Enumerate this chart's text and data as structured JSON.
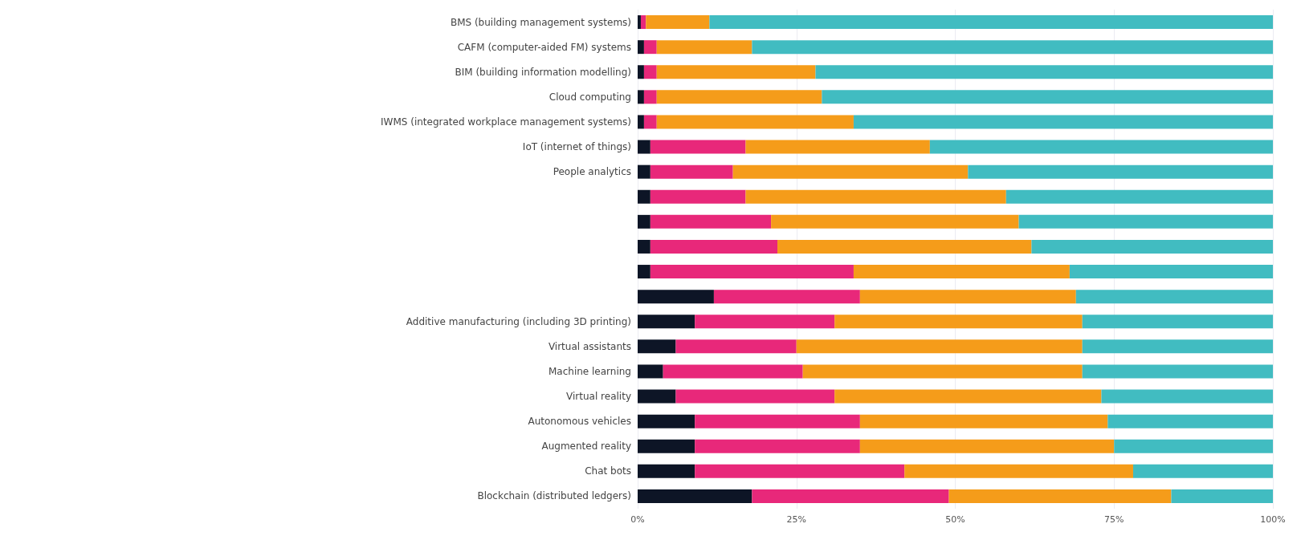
{
  "chart_data": {
    "type": "bar",
    "orientation": "horizontal",
    "stacked": true,
    "categories": [
      "BMS (building management systems)",
      "CAFM (computer-aided FM) systems",
      "BIM (building information modelling)",
      "Cloud computing",
      "IWMS (integrated workplace management systems)",
      "IoT (internet of things)",
      "People analytics",
      null,
      null,
      null,
      null,
      null,
      "Additive manufacturing (including 3D printing)",
      "Virtual assistants",
      "Machine learning",
      "Virtual reality",
      "Autonomous vehicles",
      "Augmented reality",
      "Chat bots",
      "Blockchain (distributed ledgers)"
    ],
    "series": [
      {
        "color": "#0d1526",
        "values": [
          0.5,
          1,
          1,
          1,
          1,
          2,
          2,
          2,
          2,
          2,
          2,
          12,
          9,
          6,
          4,
          6,
          9,
          9,
          9,
          18
        ]
      },
      {
        "color": "#e8287a",
        "values": [
          0.8,
          2,
          2,
          2,
          2,
          15,
          13,
          15,
          19,
          20,
          32,
          23,
          22,
          19,
          22,
          25,
          26,
          26,
          33,
          31
        ]
      },
      {
        "color": "#f59c1a",
        "values": [
          10,
          15,
          25,
          26,
          31,
          29,
          37,
          41,
          39,
          40,
          34,
          34,
          39,
          45,
          44,
          42,
          39,
          40,
          36,
          35
        ]
      },
      {
        "color": "#41bcc1",
        "values": [
          88.7,
          82,
          72,
          71,
          66,
          54,
          48,
          42,
          40,
          38,
          32,
          31,
          30,
          30,
          30,
          27,
          26,
          25,
          22,
          16
        ]
      }
    ],
    "xlim": [
      0,
      100
    ],
    "xticks": [
      {
        "value": 0,
        "label": "0%"
      },
      {
        "value": 25,
        "label": "25%"
      },
      {
        "value": 50,
        "label": "50%"
      },
      {
        "value": 75,
        "label": "75%"
      },
      {
        "value": 100,
        "label": "100%"
      }
    ],
    "grid": "x"
  }
}
